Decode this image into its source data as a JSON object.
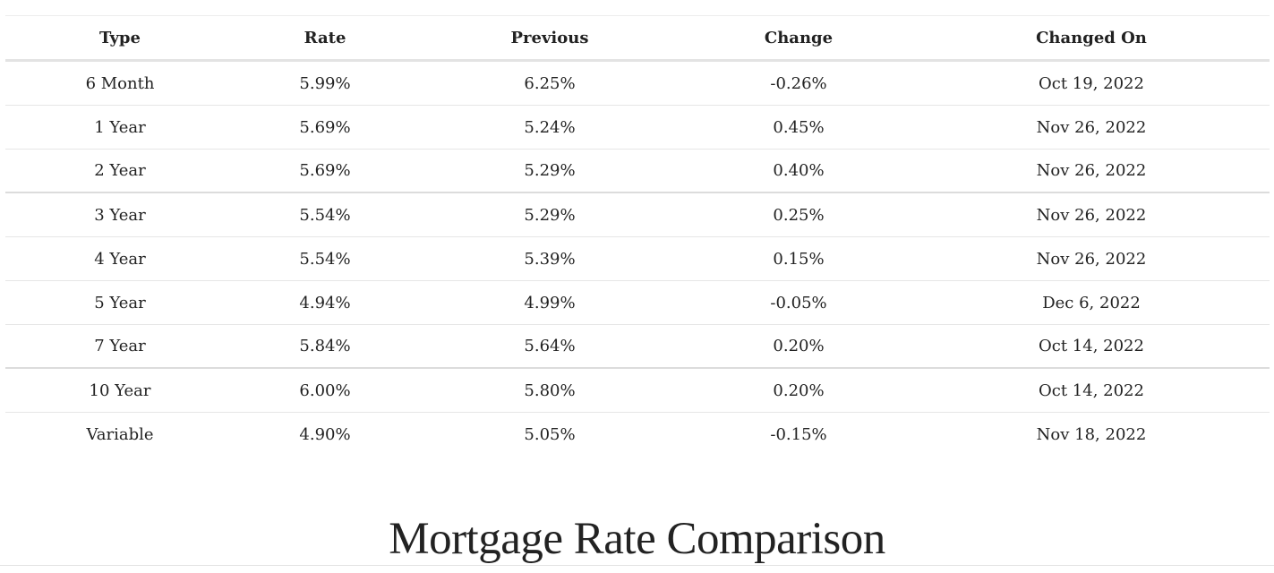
{
  "table": {
    "headers": [
      "Type",
      "Rate",
      "Previous",
      "Change",
      "Changed On"
    ],
    "rows": [
      [
        "6 Month",
        "5.99%",
        "6.25%",
        "-0.26%",
        "Oct 19, 2022"
      ],
      [
        "1 Year",
        "5.69%",
        "5.24%",
        "0.45%",
        "Nov 26, 2022"
      ],
      [
        "2 Year",
        "5.69%",
        "5.29%",
        "0.40%",
        "Nov 26, 2022"
      ],
      [
        "3 Year",
        "5.54%",
        "5.29%",
        "0.25%",
        "Nov 26, 2022"
      ],
      [
        "4 Year",
        "5.54%",
        "5.39%",
        "0.15%",
        "Nov 26, 2022"
      ],
      [
        "5 Year",
        "4.94%",
        "4.99%",
        "-0.05%",
        "Dec 6, 2022"
      ],
      [
        "7 Year",
        "5.84%",
        "5.64%",
        "0.20%",
        "Oct 14, 2022"
      ],
      [
        "10 Year",
        "6.00%",
        "5.80%",
        "0.20%",
        "Oct 14, 2022"
      ],
      [
        "Variable",
        "4.90%",
        "5.05%",
        "-0.15%",
        "Nov 18, 2022"
      ]
    ]
  },
  "section": {
    "title": "Mortgage Rate Comparison"
  }
}
